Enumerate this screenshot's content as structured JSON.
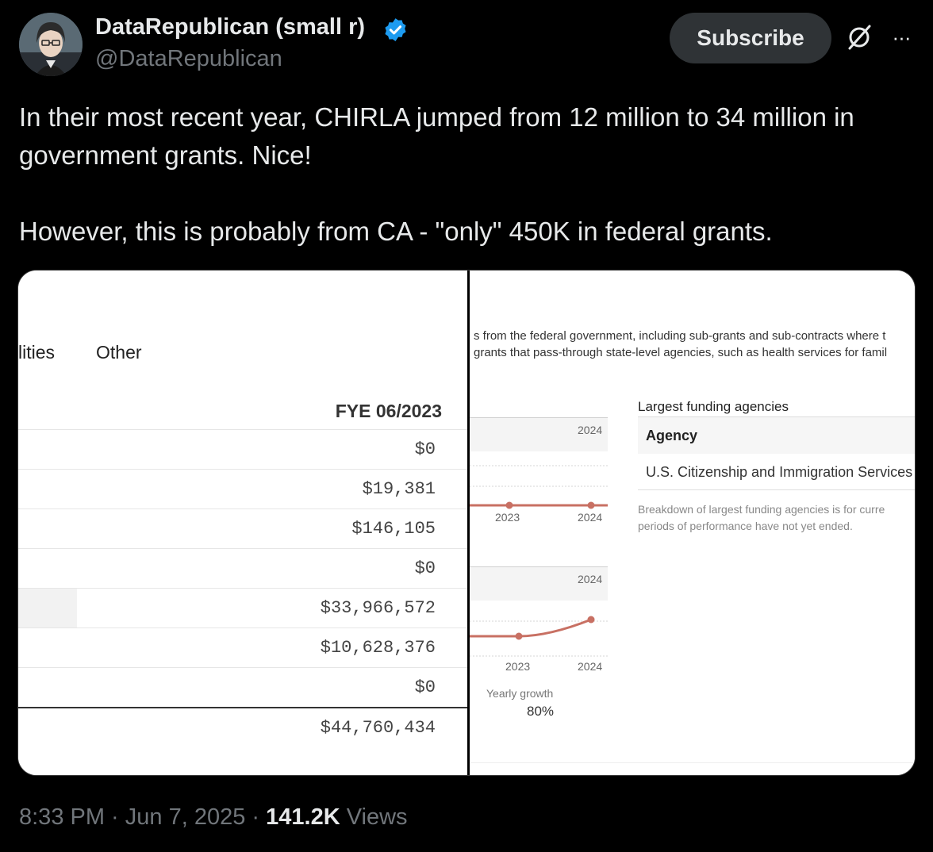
{
  "author": {
    "name": "DataRepublican (small r)",
    "handle": "@DataRepublican",
    "verified_color": "#1d9bf0"
  },
  "actions": {
    "subscribe_label": "Subscribe",
    "grok_icon": "grok-icon",
    "more_icon": "more-icon",
    "more_glyph": "···"
  },
  "tweet": {
    "text": "In their most recent year, CHIRLA jumped from 12 million to 34 million in government grants. Nice!\n\nHowever, this is probably from CA - \"only\" 450K in federal grants."
  },
  "media": {
    "left": {
      "col_cut": "lities",
      "col_other": "Other",
      "period_header": "FYE 06/2023",
      "rows": [
        "$0",
        "$19,381",
        "$146,105",
        "$0",
        "$33,966,572",
        "$10,628,376",
        "$0"
      ],
      "total": "$44,760,434"
    },
    "right": {
      "desc_line1": "s from the federal government, including sub-grants and sub-contracts where t",
      "desc_line2": "grants that pass-through state-level agencies, such as health services for famil",
      "chart1": {
        "header_year": "2024",
        "x_labels": [
          "2023",
          "2024"
        ]
      },
      "chart2": {
        "header_year": "2024",
        "x_labels": [
          "2023",
          "2024"
        ]
      },
      "growth_label": "Yearly growth",
      "growth_value": "80%",
      "agencies_title": "Largest funding agencies",
      "agency_col": "Agency",
      "agency_row": "U.S. Citizenship and Immigration Services",
      "note_line1": "Breakdown of largest funding agencies is for curre",
      "note_line2": "periods of performance have not yet ended.",
      "line_color": "#c87063"
    }
  },
  "footer": {
    "time": "8:33 PM",
    "date": "Jun 7, 2025",
    "views_count": "141.2K",
    "views_label": "Views"
  }
}
